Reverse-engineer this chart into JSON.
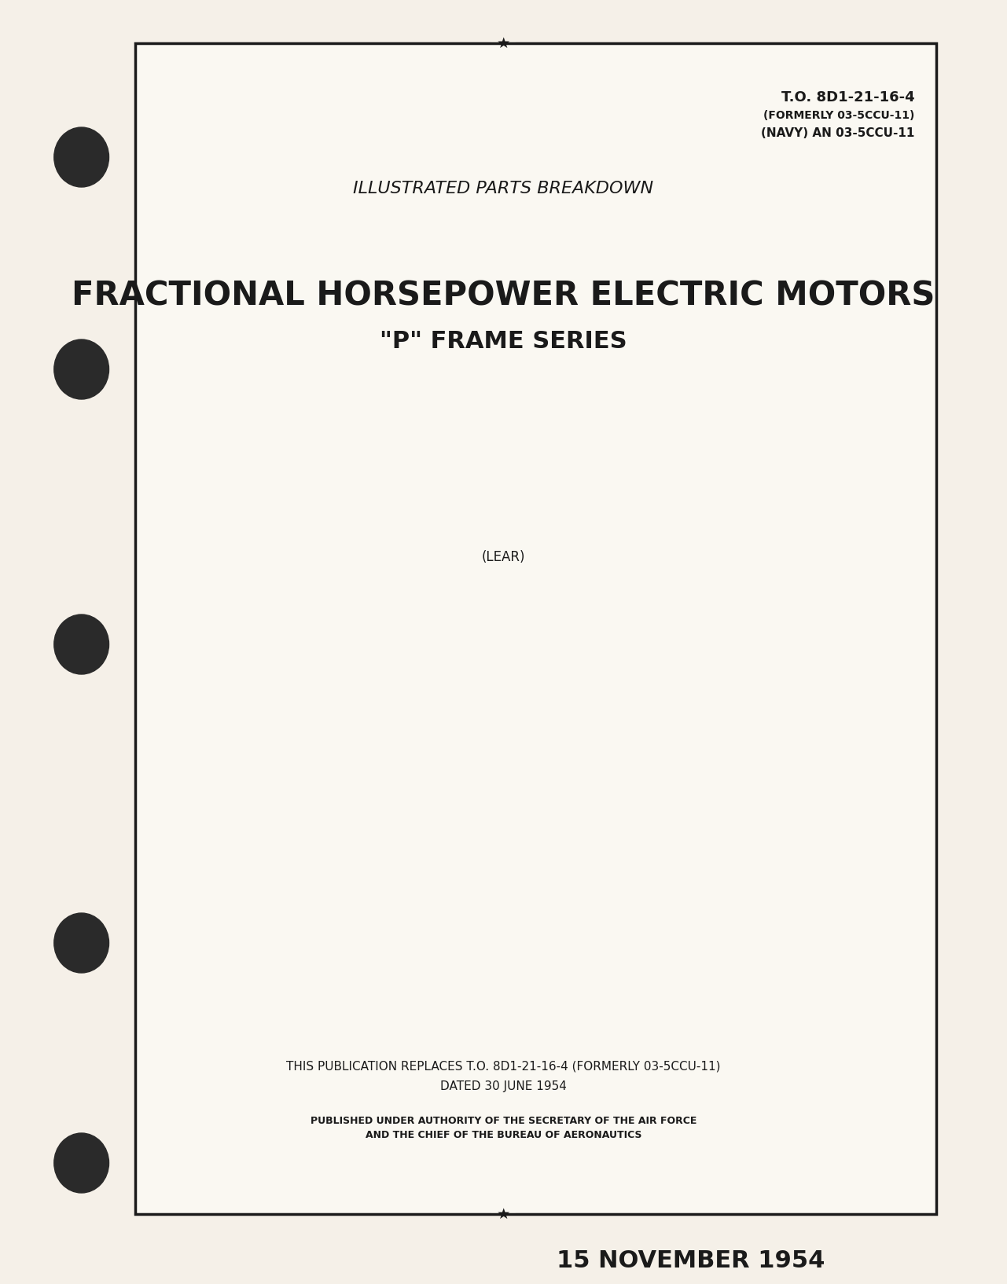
{
  "bg_color": "#f5f0e8",
  "page_bg": "#faf8f2",
  "border_color": "#1a1a1a",
  "text_color": "#1a1a1a",
  "to_number": "T.O. 8D1-21-16-4",
  "formerly": "(FORMERLY 03-5CCU-11)",
  "navy": "(NAVY) AN 03-5CCU-11",
  "subtitle_top": "ILLUSTRATED PARTS BREAKDOWN",
  "main_title_line1": "FRACTIONAL HORSEPOWER ELECTRIC MOTORS",
  "main_title_line2": "\"P\" FRAME SERIES",
  "lear": "(LEAR)",
  "replaces_line1": "THIS PUBLICATION REPLACES T.O. 8D1-21-16-4 (FORMERLY 03-5CCU-11)",
  "replaces_line2": "DATED 30 JUNE 1954",
  "authority_line1": "PUBLISHED UNDER AUTHORITY OF THE SECRETARY OF THE AIR FORCE",
  "authority_line2": "AND THE CHIEF OF THE BUREAU OF AERONAUTICS",
  "date": "15 NOVEMBER 1954",
  "star": "★"
}
